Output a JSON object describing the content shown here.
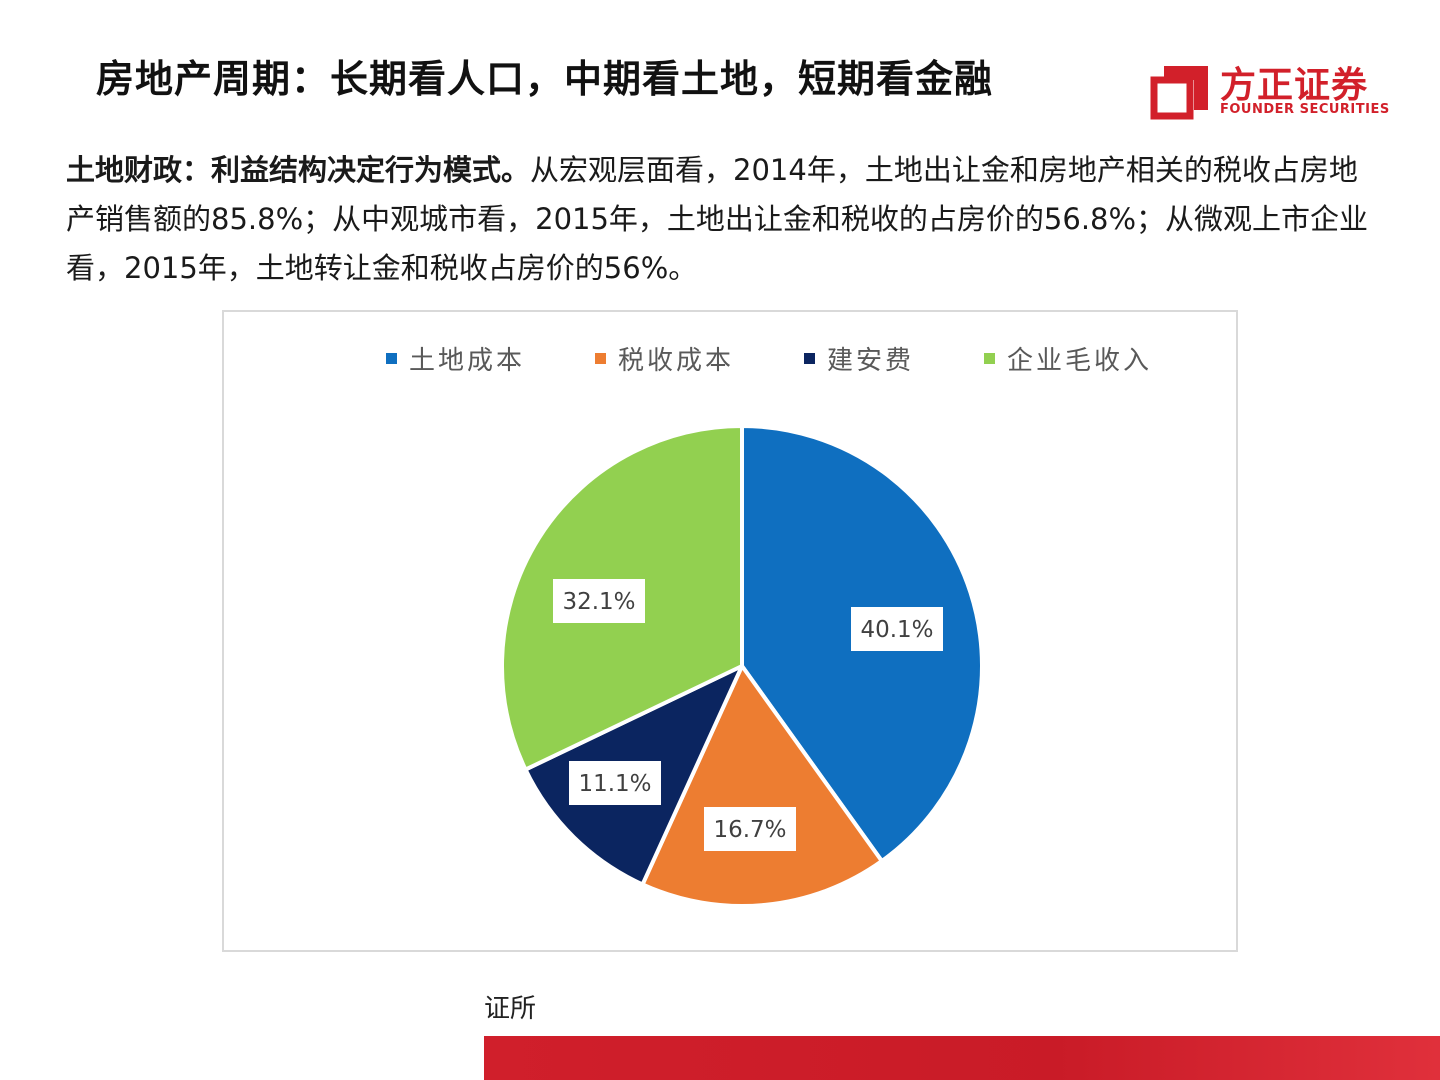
{
  "header": {
    "title": "房地产周期：长期看人口，中期看土地，短期看金融"
  },
  "logo": {
    "cn": "方正证券",
    "en": "FOUNDER SECURITIES",
    "color": "#d2202a"
  },
  "summary": {
    "lead": "土地财政：利益结构决定行为模式。",
    "text": "从宏观层面看，2014年，土地出让金和房地产相关的税收占房地产销售额的85.8%；从中观城市看，2015年，土地出让金和税收的占房价的56.8%；从微观上市企业看，2015年，土地转让金和税收占房价的56%。"
  },
  "chart_data": {
    "type": "pie",
    "categories": [
      "土地成本",
      "税收成本",
      "建安费",
      "企业毛收入"
    ],
    "values": [
      40.1,
      16.7,
      11.1,
      32.1
    ],
    "labels": [
      "40.1%",
      "16.7%",
      "11.1%",
      "32.1%"
    ],
    "colors": [
      "#0f6fc0",
      "#ed7d31",
      "#0b2560",
      "#92d050"
    ],
    "legend_position": "top"
  },
  "footer": {
    "source": "证所"
  }
}
